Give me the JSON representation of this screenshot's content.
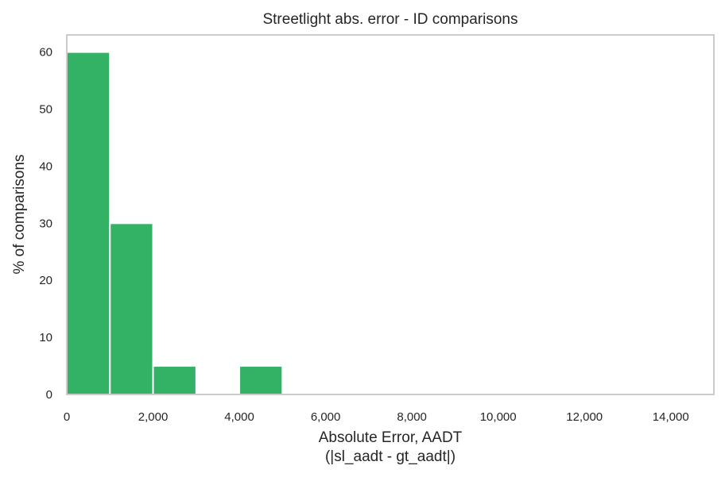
{
  "chart_data": {
    "type": "bar",
    "title": "Streetlight abs. error - ID comparisons",
    "xlabel_lines": [
      "Absolute Error, AADT",
      "(|sl_aadt - gt_aadt|)"
    ],
    "ylabel": "% of comparisons",
    "xlim": [
      0,
      15000
    ],
    "ylim": [
      0,
      63
    ],
    "xticks": [
      0,
      2000,
      4000,
      6000,
      8000,
      10000,
      12000,
      14000
    ],
    "xtick_labels": [
      "0",
      "2,000",
      "4,000",
      "6,000",
      "8,000",
      "10,000",
      "12,000",
      "14,000"
    ],
    "yticks": [
      0,
      10,
      20,
      30,
      40,
      50,
      60
    ],
    "ytick_labels": [
      "0",
      "10",
      "20",
      "30",
      "40",
      "50",
      "60"
    ],
    "bins": [
      {
        "start": 0,
        "end": 1000,
        "value": 60
      },
      {
        "start": 1000,
        "end": 2000,
        "value": 30
      },
      {
        "start": 2000,
        "end": 3000,
        "value": 5
      },
      {
        "start": 3000,
        "end": 4000,
        "value": 0
      },
      {
        "start": 4000,
        "end": 5000,
        "value": 5
      }
    ],
    "bar_color": "#33b265",
    "grid": false
  }
}
